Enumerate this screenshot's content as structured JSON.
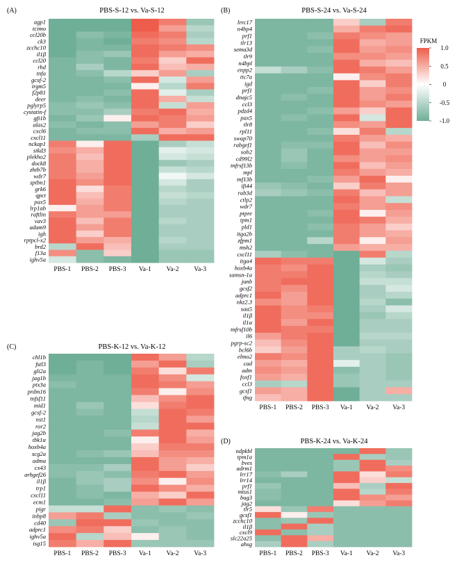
{
  "colors": {
    "low": "#6fae97",
    "mid": "#ffffff",
    "high": "#ee5d4b"
  },
  "legend": {
    "title": "FPKM",
    "ticks": [
      "1.0",
      "0.5",
      "0",
      "-0.5",
      "-1.0"
    ],
    "values": [
      1.0,
      0.5,
      0,
      -0.5,
      -1.0
    ]
  },
  "chart_data": [
    {
      "type": "heatmap",
      "tag": "(A)",
      "title": "PBS-S-12 vs. Va-S-12",
      "columns": [
        "PBS-1",
        "PBS-2",
        "PBS-3",
        "Va-1",
        "Va-2",
        "Va-3"
      ],
      "rows": [
        "agp1",
        "tcimo",
        "ccl20b",
        "ck3",
        "zcchc10",
        "il1β",
        "ccl20",
        "rhd",
        "tnfa",
        "gcsf-2",
        "irgm5",
        "f2p81",
        "deer",
        "pglyrp5",
        "cystatin-f",
        "gfi1b",
        "alas2",
        "cxcl6",
        "cxcl11",
        "nckap1",
        "stkd3",
        "plekho2",
        "dock8",
        "zhtb7b",
        "wdr7",
        "sptbn1",
        "grk6",
        "qpct",
        "pax5",
        "lrp1ab",
        "raftlin",
        "vav3",
        "adam9",
        "igh",
        "rptpcl-x2",
        "brd2",
        "f13a",
        "ighv5a"
      ],
      "values": [
        [
          -1,
          -1,
          -1,
          1,
          0.8,
          -0.7
        ],
        [
          -1,
          -1,
          -1,
          1,
          0.6,
          -0.5
        ],
        [
          -1,
          -0.8,
          -0.9,
          0.9,
          0.8,
          -0.6
        ],
        [
          -1,
          -0.9,
          -1,
          0.8,
          0.7,
          -0.5
        ],
        [
          -1,
          -0.9,
          -0.9,
          0.9,
          0.8,
          0.7
        ],
        [
          -1,
          -0.8,
          -0.7,
          0.9,
          0.6,
          0.5
        ],
        [
          -0.9,
          -0.8,
          -0.9,
          0.8,
          0.3,
          0.9
        ],
        [
          -0.9,
          -0.6,
          -0.9,
          0.9,
          0.4,
          0.5
        ],
        [
          -0.9,
          -0.8,
          -0.5,
          0.3,
          0.6,
          -0.6
        ],
        [
          -0.9,
          -0.9,
          -0.8,
          0.9,
          -0.3,
          0.6
        ],
        [
          -0.9,
          -0.9,
          -0.9,
          0.1,
          -0.5,
          0.8
        ],
        [
          -0.9,
          -0.9,
          -0.8,
          0.9,
          -0.2,
          -0.6
        ],
        [
          -0.9,
          -0.8,
          -0.9,
          0.9,
          0.5,
          -0.4
        ],
        [
          -0.8,
          -0.7,
          -0.8,
          0.9,
          -0.4,
          0.6
        ],
        [
          -0.8,
          -0.8,
          -0.6,
          0.8,
          0.9,
          0.5
        ],
        [
          -0.9,
          -0.7,
          0.1,
          0.9,
          0.8,
          0.6
        ],
        [
          -0.8,
          -0.9,
          -0.8,
          0.6,
          0.8,
          0.3
        ],
        [
          -0.9,
          -0.8,
          -0.8,
          0.9,
          0.5,
          0.6
        ],
        [
          -0.9,
          -0.9,
          -0.9,
          -0.6,
          0.9,
          0.9
        ],
        [
          0.8,
          0.1,
          0.9,
          -1,
          -0.6,
          -0.4
        ],
        [
          0.7,
          0.5,
          0.9,
          -1,
          -0.2,
          -0.3
        ],
        [
          0.8,
          0.4,
          0.9,
          -1,
          -0.3,
          -0.4
        ],
        [
          0.8,
          0.5,
          0.9,
          -1,
          -0.7,
          -0.6
        ],
        [
          0.8,
          0.5,
          0.9,
          -1,
          -0.4,
          -0.5
        ],
        [
          0.8,
          0.6,
          0.9,
          -1,
          -0.1,
          -0.3
        ],
        [
          0.9,
          0.7,
          0.9,
          -1,
          -0.3,
          -0.6
        ],
        [
          0.9,
          0.2,
          0.8,
          -1,
          -0.5,
          -0.6
        ],
        [
          0.9,
          0.4,
          0.8,
          -1,
          -0.4,
          -0.5
        ],
        [
          0.9,
          0.5,
          0.8,
          -1,
          -0.5,
          -0.6
        ],
        [
          0.1,
          0.6,
          0.8,
          -1,
          -0.6,
          -0.6
        ],
        [
          0.8,
          0.6,
          0.6,
          -1,
          -0.6,
          -0.6
        ],
        [
          0.9,
          0.4,
          0.8,
          -1,
          -0.5,
          -0.6
        ],
        [
          0.9,
          0.6,
          0.8,
          -1,
          -0.6,
          -0.6
        ],
        [
          0.9,
          0.3,
          0.8,
          -1,
          -0.6,
          -0.6
        ],
        [
          0.9,
          0.6,
          0.5,
          -1,
          -0.5,
          -0.6
        ],
        [
          -0.5,
          0.9,
          0.4,
          -1,
          -0.6,
          -0.6
        ],
        [
          0.7,
          -0.8,
          0.3,
          -1,
          -0.7,
          -0.7
        ],
        [
          -0.3,
          -0.8,
          -0.9,
          -1,
          -0.7,
          -0.7
        ]
      ]
    },
    {
      "type": "heatmap",
      "tag": "(B)",
      "title": "PBS-S-24 vs. Va-S-24",
      "columns": [
        "PBS-1",
        "PBS-2",
        "PBS-3",
        "Va-1",
        "Va-2",
        "Va-3"
      ],
      "rows": [
        "lrrc17",
        "n4bp4",
        "prf1",
        "tlr13",
        "sema3d",
        "tlr9",
        "n4bpl",
        "enpp2",
        "ttc7a",
        "igd",
        "prf1",
        "dnajc5",
        "ccl3",
        "pdzd4",
        "pax5",
        "tlr8",
        "rpl11",
        "swap70",
        "rabgef1",
        "sob2",
        "cd99l2",
        "tnfrsf13b",
        "mpl",
        "tnf13b",
        "ifi44",
        "rab3d",
        "ctlp2",
        "wdr7",
        "ptpre",
        "tpm1",
        "pld1",
        "itga2b",
        "zfpm1",
        "msh2",
        "cxcl11",
        "itga4",
        "hoxb4a",
        "samsn-1a",
        "junb",
        "gcsf2",
        "adprc1",
        "nkz2.3",
        "saa5",
        "il1β",
        "il1α",
        "tnfrsf10b",
        "il6",
        "pgrp-sc2",
        "bcl6b",
        "elmo2",
        "cad",
        "adm",
        "foxf1",
        "ccl3",
        "gcsf1",
        "ifng"
      ],
      "values": [
        [
          -0.9,
          -0.9,
          -0.9,
          0.3,
          -0.6,
          0.8
        ],
        [
          -0.9,
          -0.9,
          -0.9,
          0.5,
          0.8,
          0.9
        ],
        [
          -0.9,
          -0.9,
          -0.8,
          0.8,
          0.7,
          0.6
        ],
        [
          -0.9,
          -0.9,
          -0.9,
          0.9,
          0.5,
          0.6
        ],
        [
          -0.9,
          -0.9,
          -0.8,
          0.9,
          0.6,
          0.7
        ],
        [
          -0.9,
          -0.9,
          -0.9,
          0.7,
          0.7,
          0.6
        ],
        [
          -0.9,
          -0.9,
          -0.9,
          0.9,
          0.5,
          0.4
        ],
        [
          -0.4,
          -0.6,
          -0.8,
          0.9,
          0.8,
          0.6
        ],
        [
          -0.9,
          -0.9,
          -0.9,
          0.1,
          0.7,
          0.8
        ],
        [
          -0.9,
          -0.9,
          -0.9,
          0.9,
          0.3,
          0.8
        ],
        [
          -0.9,
          -0.9,
          -0.8,
          0.9,
          0.6,
          0.7
        ],
        [
          -0.9,
          -0.8,
          -0.9,
          0.9,
          0.6,
          0.8
        ],
        [
          -0.9,
          -0.9,
          -0.9,
          0.9,
          0.7,
          0.6
        ],
        [
          -0.9,
          -0.9,
          -0.8,
          0.6,
          0.3,
          0.9
        ],
        [
          -0.9,
          -0.8,
          -0.9,
          0.9,
          -0.3,
          0.9
        ],
        [
          -0.9,
          -0.9,
          -0.9,
          0.7,
          0.6,
          0.9
        ],
        [
          -0.9,
          -0.9,
          -0.8,
          0.2,
          0.8,
          -0.5
        ],
        [
          -0.9,
          -0.9,
          -0.9,
          0.8,
          0.6,
          0.5
        ],
        [
          -0.9,
          -0.8,
          -0.8,
          0.9,
          0.4,
          0.7
        ],
        [
          -0.9,
          -0.7,
          -0.9,
          0.9,
          0.6,
          0.6
        ],
        [
          -0.9,
          -0.7,
          -0.9,
          0.7,
          0.6,
          0.7
        ],
        [
          -0.9,
          -0.8,
          -0.9,
          0.9,
          0.4,
          0.6
        ],
        [
          -0.9,
          -0.9,
          -0.9,
          0.8,
          0.6,
          0.5
        ],
        [
          -0.9,
          -0.9,
          -0.8,
          0.6,
          0.9,
          0.1
        ],
        [
          -0.7,
          -0.8,
          -0.9,
          0.3,
          0.8,
          0.6
        ],
        [
          -0.6,
          -0.7,
          -0.8,
          0.8,
          0.4,
          0.6
        ],
        [
          -0.9,
          -0.9,
          -0.9,
          0.9,
          0.6,
          -0.4
        ],
        [
          -0.9,
          -0.9,
          -0.9,
          0.8,
          0.6,
          0.7
        ],
        [
          -0.9,
          -0.9,
          -0.8,
          0.9,
          0.1,
          0.6
        ],
        [
          -0.9,
          -0.9,
          -0.9,
          0.9,
          0.8,
          0.5
        ],
        [
          -0.9,
          -0.9,
          -0.8,
          0.8,
          0.6,
          0.3
        ],
        [
          -0.9,
          -0.9,
          -0.9,
          0.8,
          0.6,
          0.5
        ],
        [
          -0.9,
          -0.9,
          -0.5,
          0.8,
          0.1,
          0.6
        ],
        [
          -0.9,
          -0.9,
          -0.9,
          0.6,
          0.5,
          0.5
        ],
        [
          -0.6,
          -0.8,
          -0.9,
          -1,
          0.8,
          -0.5
        ],
        [
          0.9,
          0.8,
          0.8,
          -1,
          -0.3,
          -0.6
        ],
        [
          0.8,
          0.7,
          0.9,
          -1,
          -0.6,
          -0.7
        ],
        [
          0.8,
          0.8,
          0.9,
          -1,
          -0.5,
          -0.6
        ],
        [
          0.8,
          0.9,
          0.9,
          -1,
          -0.4,
          -0.4
        ],
        [
          0.8,
          0.7,
          0.9,
          -1,
          -0.6,
          -0.3
        ],
        [
          0.9,
          0.6,
          0.9,
          -1,
          -0.6,
          -0.5
        ],
        [
          0.7,
          0.6,
          0.9,
          -1,
          -0.5,
          -0.8
        ],
        [
          0.9,
          0.7,
          0.8,
          -1,
          -0.6,
          -0.3
        ],
        [
          0.9,
          0.7,
          0.7,
          -1,
          -0.7,
          -0.5
        ],
        [
          0.9,
          0.6,
          0.9,
          -1,
          -0.6,
          -0.6
        ],
        [
          0.9,
          0.8,
          0.8,
          -1,
          -0.6,
          -0.6
        ],
        [
          0.6,
          0.8,
          0.9,
          -1,
          -0.5,
          -0.5
        ],
        [
          0.4,
          0.7,
          0.9,
          -1,
          -0.6,
          -0.6
        ],
        [
          0.3,
          0.6,
          0.9,
          -0.6,
          -0.5,
          -0.6
        ],
        [
          0.8,
          0.7,
          0.9,
          -0.6,
          -0.6,
          -0.7
        ],
        [
          0.6,
          0.5,
          0.9,
          -0.2,
          -0.6,
          -0.7
        ],
        [
          0.7,
          0.6,
          0.9,
          -0.8,
          -0.6,
          -0.7
        ],
        [
          0.6,
          0.5,
          0.9,
          -0.7,
          -0.6,
          -0.7
        ],
        [
          -0.6,
          -0.5,
          0.9,
          -0.7,
          -0.6,
          -0.6
        ],
        [
          0.6,
          0.5,
          0.9,
          -1,
          -0.6,
          0.5
        ],
        [
          0.4,
          0.5,
          0.9,
          -1,
          -0.6,
          -0.6
        ]
      ]
    },
    {
      "type": "heatmap",
      "tag": "(C)",
      "title": "PBS-K-12 vs. Va-K-12",
      "columns": [
        "PBS-1",
        "PBS-2",
        "PBS-3",
        "Va-1",
        "Va-2",
        "Va-3"
      ],
      "rows": [
        "chl1b",
        "fstl3",
        "gli2a",
        "jag1b",
        "ptx3a",
        "prdm16",
        "tnfsf11",
        "mid1",
        "gcsf-2",
        "nst1",
        "ror2",
        "jag2b",
        "tbk1α",
        "hoxb4a",
        "scg2a",
        "adma",
        "cx43",
        "arhgef26",
        "il1β",
        "trp1",
        "cxcl11",
        "ecm1",
        "pigr",
        "inbp8",
        "cd40",
        "adprc1",
        "ighv5a",
        "isg15"
      ],
      "values": [
        [
          -1,
          -1,
          -1,
          0.9,
          0.6,
          -0.5
        ],
        [
          -1,
          -0.9,
          -1,
          0.6,
          0.9,
          -0.6
        ],
        [
          -1,
          -0.9,
          -1,
          0.8,
          0.2,
          0.8
        ],
        [
          -0.9,
          -0.9,
          -0.9,
          0.9,
          0.7,
          -0.3
        ],
        [
          -0.8,
          -0.9,
          -0.9,
          0.9,
          0.8,
          0.6
        ],
        [
          -0.9,
          -0.9,
          -0.9,
          0.8,
          0.1,
          0.7
        ],
        [
          -0.9,
          -0.9,
          -0.9,
          0.4,
          0.7,
          0.9
        ],
        [
          -0.9,
          -0.7,
          -0.9,
          0.2,
          0.8,
          0.9
        ],
        [
          -0.9,
          -0.8,
          -0.9,
          -0.4,
          0.9,
          0.8
        ],
        [
          -0.9,
          -0.9,
          -0.9,
          -0.5,
          0.9,
          0.6
        ],
        [
          -0.9,
          -0.9,
          -0.9,
          -0.4,
          0.9,
          0.9
        ],
        [
          -0.9,
          -0.9,
          -0.8,
          0.8,
          0.9,
          0.5
        ],
        [
          -0.9,
          -0.9,
          -0.9,
          0.1,
          0.9,
          0.6
        ],
        [
          -0.9,
          -0.9,
          -0.9,
          0.3,
          0.8,
          0.8
        ],
        [
          -0.9,
          -0.8,
          -0.7,
          0.4,
          0.7,
          0.7
        ],
        [
          -0.9,
          -0.9,
          -0.9,
          0.9,
          0.6,
          0.5
        ],
        [
          -0.8,
          -0.8,
          -0.6,
          0.9,
          0.6,
          0.3
        ],
        [
          -0.8,
          -0.7,
          -0.8,
          0.8,
          0.9,
          0.6
        ],
        [
          -0.9,
          -0.7,
          -0.6,
          0.7,
          0.1,
          0.7
        ],
        [
          -0.9,
          -0.8,
          -0.6,
          0.9,
          0.7,
          0.5
        ],
        [
          -0.9,
          -0.8,
          -0.9,
          0.5,
          0.3,
          0.9
        ],
        [
          -0.9,
          -0.9,
          -0.8,
          0.6,
          0.9,
          0.6
        ],
        [
          -0.4,
          -0.4,
          0.9,
          -0.8,
          -0.7,
          -0.8
        ],
        [
          0.6,
          0.8,
          -0.6,
          -0.8,
          -0.8,
          -0.7
        ],
        [
          -0.7,
          0.9,
          0.9,
          -0.7,
          -0.8,
          -0.8
        ],
        [
          0.7,
          0.8,
          0.3,
          -0.8,
          -0.7,
          -0.8
        ],
        [
          0.9,
          -0.5,
          0.4,
          0.1,
          -0.7,
          -0.8
        ],
        [
          0.8,
          0.5,
          0.9,
          -0.7,
          -0.7,
          -0.7
        ]
      ]
    },
    {
      "type": "heatmap",
      "tag": "(D)",
      "title": "PBS-K-24 vs. Va-K-24",
      "columns": [
        "PBS-1",
        "PBS-2",
        "PBS-3",
        "Va-1",
        "Va-2",
        "Va-3"
      ],
      "rows": [
        "ndpkbl",
        "tpm1a",
        "bves",
        "adrm1",
        "lrr17",
        "lrr14",
        "prf1",
        "mtus1",
        "bug3",
        "jag2",
        "tlr5",
        "gcsf1",
        "zcchc10",
        "il1β",
        "cxcl9",
        "slc22a25",
        "ahsg"
      ],
      "values": [
        [
          -0.9,
          -0.9,
          -0.9,
          -0.9,
          0.9,
          -0.7
        ],
        [
          -0.9,
          -0.9,
          -0.9,
          0.9,
          -0.6,
          -0.7
        ],
        [
          -0.9,
          -0.9,
          -0.9,
          -0.7,
          0.9,
          -0.6
        ],
        [
          -0.9,
          -0.9,
          -0.9,
          -0.7,
          0.9,
          0.7
        ],
        [
          -0.8,
          -0.6,
          -0.9,
          0.9,
          0.2,
          0.8
        ],
        [
          -0.9,
          -0.9,
          -0.9,
          0.9,
          0.3,
          -0.4
        ],
        [
          -0.7,
          -0.9,
          -0.9,
          0.4,
          -0.6,
          0.9
        ],
        [
          -0.8,
          -0.9,
          -0.9,
          0.9,
          -0.5,
          0.8
        ],
        [
          -0.8,
          -0.9,
          -0.9,
          0.9,
          0.7,
          0.6
        ],
        [
          -0.9,
          -0.9,
          -0.9,
          0.2,
          0.6,
          0.8
        ],
        [
          0.2,
          -0.7,
          0.8,
          -0.8,
          -0.8,
          -0.8
        ],
        [
          0.9,
          0.1,
          -0.7,
          -0.8,
          -0.8,
          -0.8
        ],
        [
          -0.8,
          -0.7,
          0.9,
          -0.8,
          -0.8,
          -0.8
        ],
        [
          -0.8,
          0.9,
          -0.6,
          -0.8,
          -0.8,
          -0.8
        ],
        [
          0.9,
          -0.8,
          -0.6,
          -0.8,
          -0.8,
          -0.8
        ],
        [
          -0.8,
          0.9,
          0.5,
          -0.8,
          -0.8,
          -0.8
        ],
        [
          -0.6,
          0.9,
          -0.6,
          -0.8,
          -0.8,
          -0.8
        ]
      ]
    }
  ]
}
